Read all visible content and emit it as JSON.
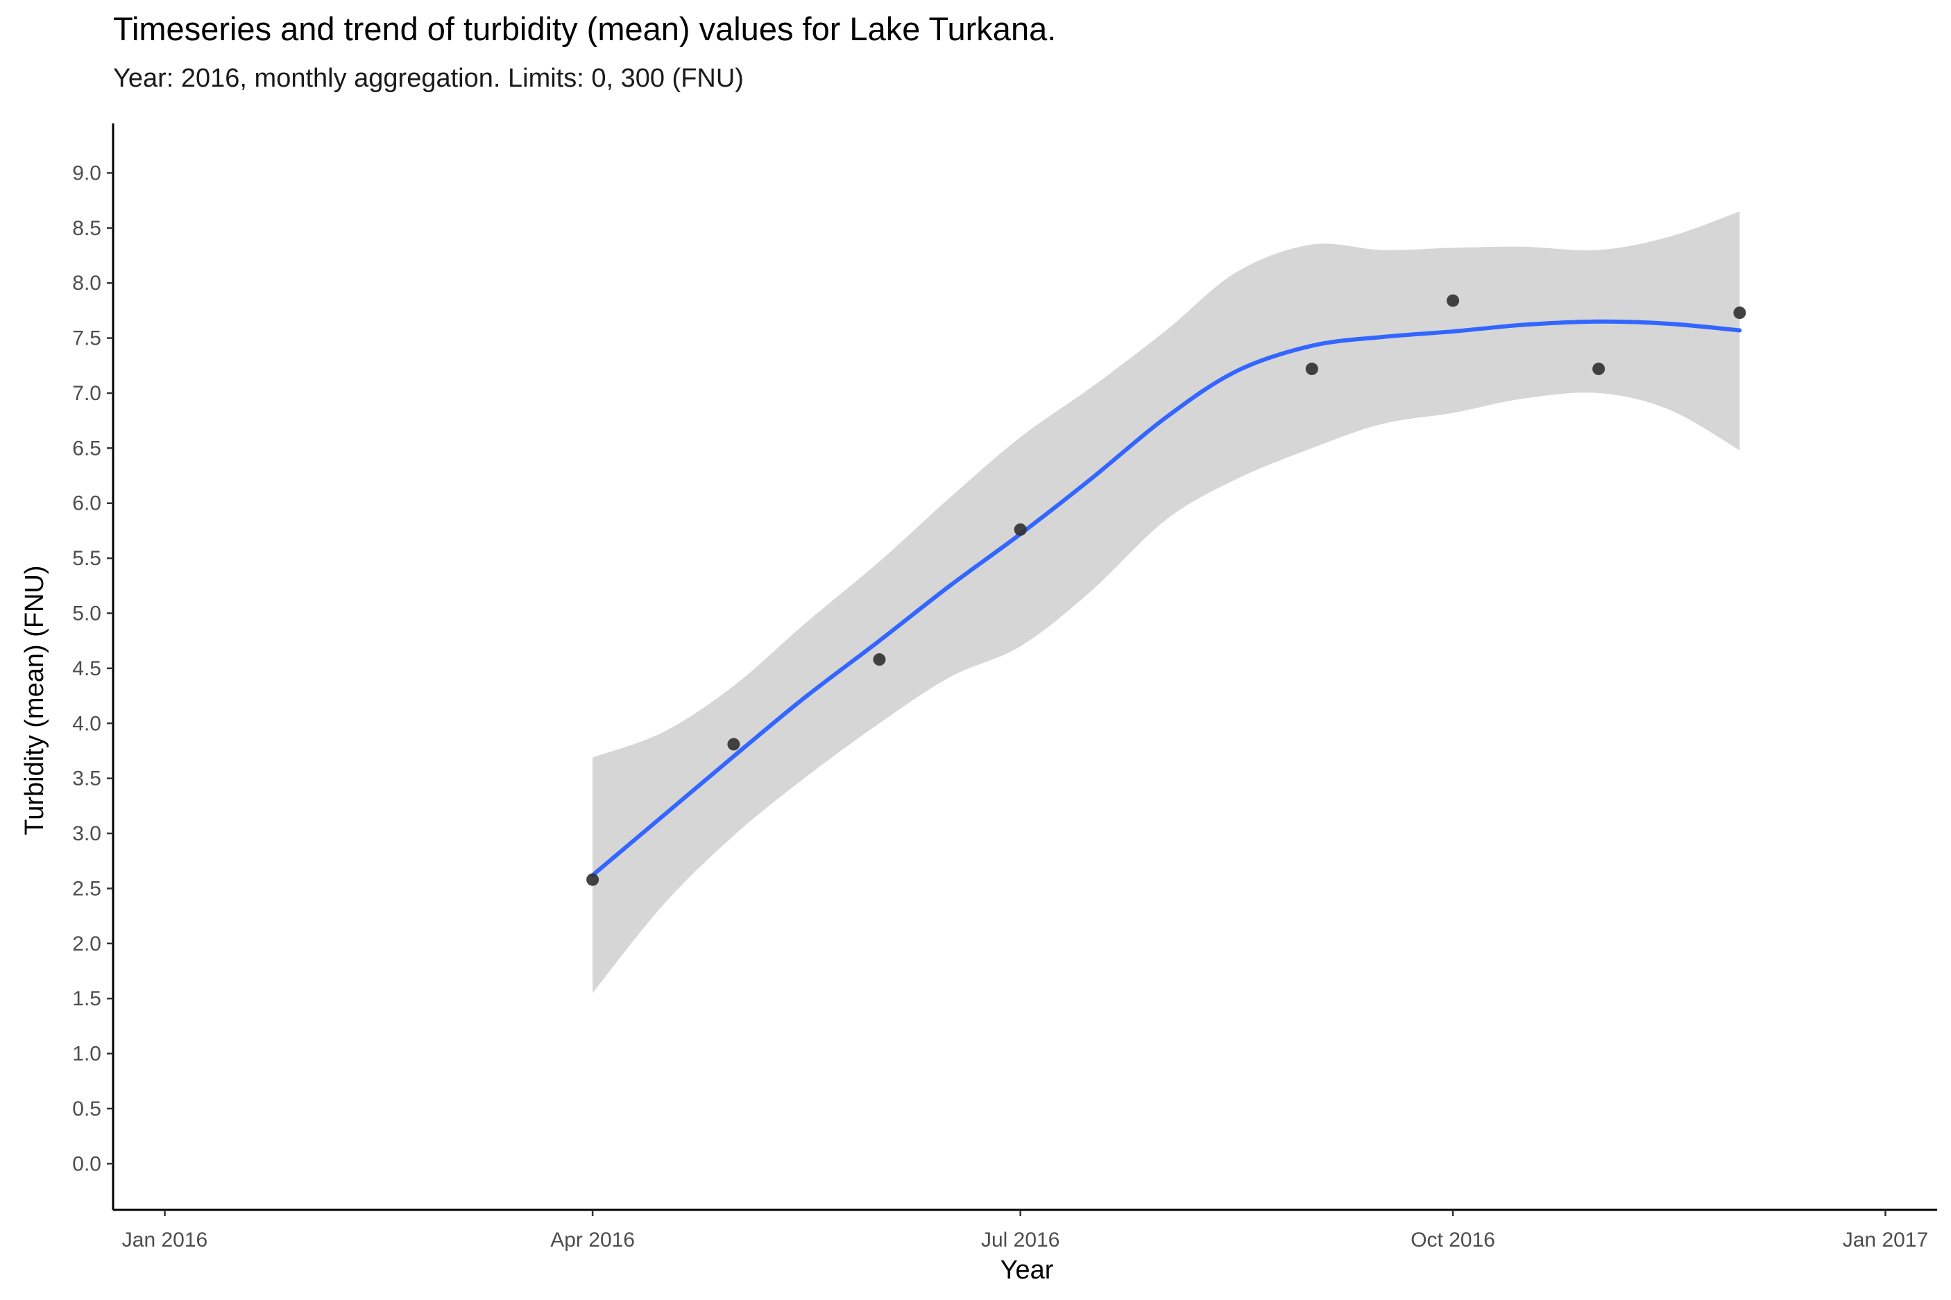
{
  "chart_data": {
    "type": "scatter",
    "title": "Timeseries and trend of turbidity (mean) values for Lake Turkana.",
    "subtitle": "Year: 2016, monthly aggregation. Limits: 0, 300 (FNU)",
    "xlabel": "Year",
    "ylabel": "Turbidity (mean) (FNU)",
    "x_axis_type": "date",
    "xlim": [
      "2015-12-21",
      "2017-01-12"
    ],
    "ylim": [
      -0.42,
      9.45
    ],
    "x_ticks": [
      {
        "date": "2016-01-01",
        "label": "Jan 2016"
      },
      {
        "date": "2016-04-01",
        "label": "Apr 2016"
      },
      {
        "date": "2016-07-01",
        "label": "Jul 2016"
      },
      {
        "date": "2016-10-01",
        "label": "Oct 2016"
      },
      {
        "date": "2017-01-01",
        "label": "Jan 2017"
      }
    ],
    "y_ticks": [
      0.0,
      0.5,
      1.0,
      1.5,
      2.0,
      2.5,
      3.0,
      3.5,
      4.0,
      4.5,
      5.0,
      5.5,
      6.0,
      6.5,
      7.0,
      7.5,
      8.0,
      8.5,
      9.0
    ],
    "points": [
      {
        "x": "2016-04-01",
        "y": 2.58
      },
      {
        "x": "2016-05-01",
        "y": 3.81
      },
      {
        "x": "2016-06-01",
        "y": 4.58
      },
      {
        "x": "2016-07-01",
        "y": 5.76
      },
      {
        "x": "2016-09-01",
        "y": 7.22
      },
      {
        "x": "2016-10-01",
        "y": 7.84
      },
      {
        "x": "2016-11-01",
        "y": 7.22
      },
      {
        "x": "2016-12-01",
        "y": 7.73
      }
    ],
    "trend": [
      {
        "x": "2016-04-01",
        "y": 2.62,
        "lo": 1.55,
        "hi": 3.69
      },
      {
        "x": "2016-04-16",
        "y": 3.16,
        "lo": 2.35,
        "hi": 3.92
      },
      {
        "x": "2016-05-01",
        "y": 3.7,
        "lo": 2.98,
        "hi": 4.34
      },
      {
        "x": "2016-05-16",
        "y": 4.23,
        "lo": 3.5,
        "hi": 4.9
      },
      {
        "x": "2016-06-01",
        "y": 4.75,
        "lo": 4.0,
        "hi": 5.47
      },
      {
        "x": "2016-06-16",
        "y": 5.25,
        "lo": 4.42,
        "hi": 6.05
      },
      {
        "x": "2016-07-01",
        "y": 5.72,
        "lo": 4.7,
        "hi": 6.6
      },
      {
        "x": "2016-07-16",
        "y": 6.22,
        "lo": 5.2,
        "hi": 7.05
      },
      {
        "x": "2016-08-01",
        "y": 6.78,
        "lo": 5.85,
        "hi": 7.57
      },
      {
        "x": "2016-08-16",
        "y": 7.2,
        "lo": 6.22,
        "hi": 8.1
      },
      {
        "x": "2016-09-01",
        "y": 7.43,
        "lo": 6.5,
        "hi": 8.35
      },
      {
        "x": "2016-09-16",
        "y": 7.51,
        "lo": 6.72,
        "hi": 8.3
      },
      {
        "x": "2016-10-01",
        "y": 7.56,
        "lo": 6.82,
        "hi": 8.32
      },
      {
        "x": "2016-10-16",
        "y": 7.62,
        "lo": 6.95,
        "hi": 8.33
      },
      {
        "x": "2016-11-01",
        "y": 7.65,
        "lo": 7.0,
        "hi": 8.3
      },
      {
        "x": "2016-11-16",
        "y": 7.63,
        "lo": 6.85,
        "hi": 8.42
      },
      {
        "x": "2016-12-01",
        "y": 7.57,
        "lo": 6.48,
        "hi": 8.65
      }
    ],
    "grid": false,
    "legend": "none",
    "colors": {
      "point": "#333333",
      "trend_line": "#3366ff",
      "ribbon": "#d6d6d6",
      "axis": "#000000"
    }
  }
}
